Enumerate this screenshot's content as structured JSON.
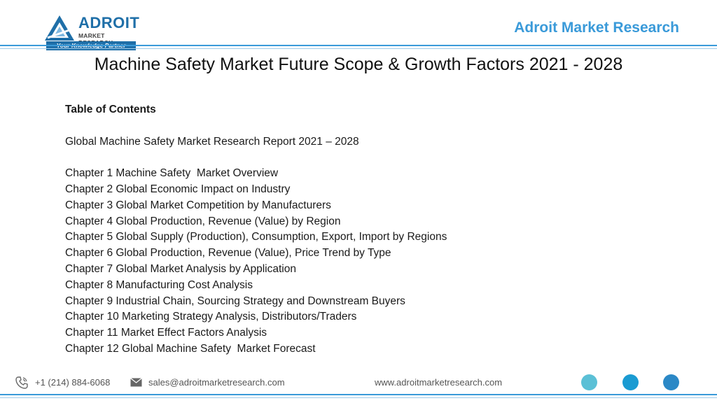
{
  "header": {
    "logo": {
      "name": "ADROIT",
      "subtitle": "MARKET RESEARCH",
      "tagline": "Your Knowledge Partner"
    },
    "brand": "Adroit Market Research"
  },
  "title": "Machine Safety  Market Future Scope & Growth Factors 2021 - 2028",
  "toc": {
    "heading": "Table of Contents",
    "report_title": "Global Machine Safety  Market Research Report 2021 – 2028",
    "chapters": [
      "Chapter 1 Machine Safety  Market Overview",
      "Chapter 2 Global Economic Impact on Industry",
      "Chapter 3 Global Market Competition by Manufacturers",
      "Chapter 4 Global Production, Revenue (Value) by Region",
      "Chapter 5 Global Supply (Production), Consumption, Export, Import by Regions",
      "Chapter 6 Global Production, Revenue (Value), Price Trend by Type",
      "Chapter 7 Global Market Analysis by Application",
      "Chapter 8 Manufacturing Cost Analysis",
      "Chapter 9 Industrial Chain, Sourcing Strategy and Downstream Buyers",
      "Chapter 10 Marketing Strategy Analysis, Distributors/Traders",
      "Chapter 11 Market Effect Factors Analysis",
      "Chapter 12 Global Machine Safety  Market Forecast"
    ]
  },
  "footer": {
    "phone": "+1 (214) 884-6068",
    "email": "sales@adroitmarketresearch.com",
    "website": "www.adroitmarketresearch.com",
    "icons": [
      "phone-icon",
      "mail-icon"
    ],
    "dot_colors": [
      "#5bc0d6",
      "#1a9bd2",
      "#2b88c6"
    ]
  },
  "colors": {
    "accent": "#3a9ad9",
    "logo_blue": "#1f6fa8"
  }
}
